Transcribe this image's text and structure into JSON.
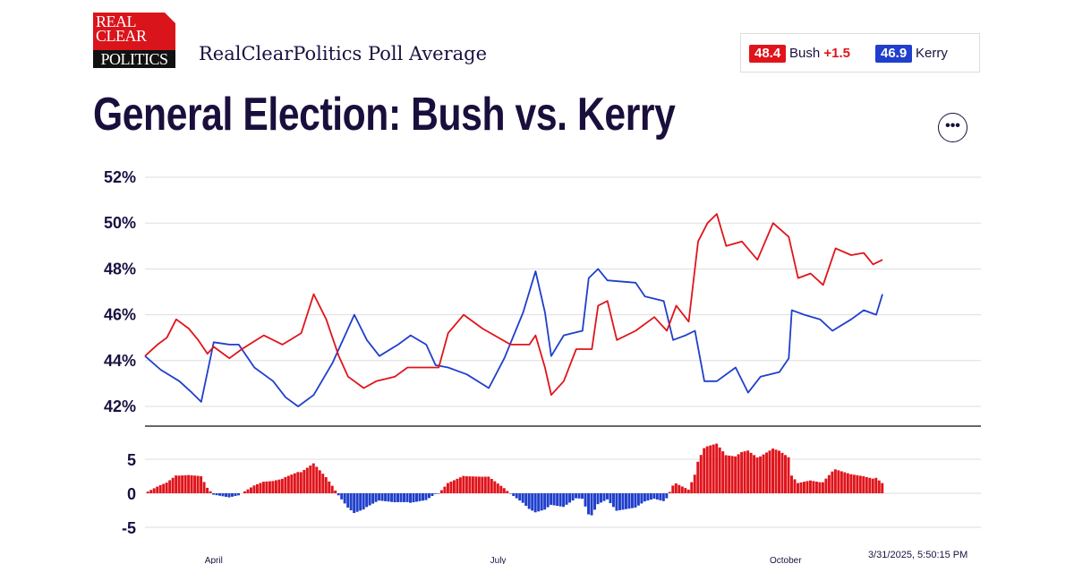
{
  "logo": {
    "lines": [
      "REAL",
      "CLEAR",
      "POLITICS"
    ]
  },
  "header": {
    "subtitle": "RealClearPolitics Poll Average",
    "title": "General Election: Bush vs. Kerry",
    "more_icon": "ellipsis-icon"
  },
  "legend": {
    "bush": {
      "value": "48.4",
      "name": "Bush",
      "lead": "+1.5",
      "color": "#e0141b"
    },
    "kerry": {
      "value": "46.9",
      "name": "Kerry",
      "color": "#1f3fcc"
    }
  },
  "timestamp": "3/31/2025, 5:50:15 PM",
  "chart_data": [
    {
      "type": "line",
      "yticks": [
        "52%",
        "50%",
        "48%",
        "46%",
        "44%",
        "42%"
      ],
      "ylim": [
        42,
        52
      ],
      "xlim": [
        "2004-03-10",
        "2004-11-01"
      ],
      "xticks": [
        {
          "date": "2004-04-01",
          "label": "April"
        },
        {
          "date": "2004-07-01",
          "label": "July"
        },
        {
          "date": "2004-10-01",
          "label": "October"
        }
      ],
      "grid": true,
      "series": [
        {
          "name": "Bush",
          "color": "#e0141b",
          "points": [
            [
              "2004-03-10",
              44.2
            ],
            [
              "2004-03-14",
              44.7
            ],
            [
              "2004-03-17",
              45.0
            ],
            [
              "2004-03-20",
              45.8
            ],
            [
              "2004-03-24",
              45.4
            ],
            [
              "2004-03-27",
              44.9
            ],
            [
              "2004-03-30",
              44.3
            ],
            [
              "2004-04-01",
              44.6
            ],
            [
              "2004-04-06",
              44.1
            ],
            [
              "2004-04-10",
              44.5
            ],
            [
              "2004-04-17",
              45.1
            ],
            [
              "2004-04-23",
              44.7
            ],
            [
              "2004-04-29",
              45.2
            ],
            [
              "2004-05-03",
              46.9
            ],
            [
              "2004-05-07",
              45.8
            ],
            [
              "2004-05-11",
              44.2
            ],
            [
              "2004-05-14",
              43.3
            ],
            [
              "2004-05-19",
              42.8
            ],
            [
              "2004-05-23",
              43.1
            ],
            [
              "2004-05-29",
              43.3
            ],
            [
              "2004-06-02",
              43.7
            ],
            [
              "2004-06-06",
              43.7
            ],
            [
              "2004-06-12",
              43.7
            ],
            [
              "2004-06-15",
              45.2
            ],
            [
              "2004-06-20",
              46.0
            ],
            [
              "2004-06-26",
              45.4
            ],
            [
              "2004-07-05",
              44.7
            ],
            [
              "2004-07-11",
              44.7
            ],
            [
              "2004-07-13",
              45.1
            ],
            [
              "2004-07-16",
              43.7
            ],
            [
              "2004-07-18",
              42.5
            ],
            [
              "2004-07-22",
              43.1
            ],
            [
              "2004-07-26",
              44.5
            ],
            [
              "2004-07-31",
              44.5
            ],
            [
              "2004-08-02",
              46.4
            ],
            [
              "2004-08-05",
              46.6
            ],
            [
              "2004-08-08",
              44.9
            ],
            [
              "2004-08-14",
              45.3
            ],
            [
              "2004-08-20",
              45.9
            ],
            [
              "2004-08-24",
              45.3
            ],
            [
              "2004-08-27",
              46.4
            ],
            [
              "2004-08-31",
              45.7
            ],
            [
              "2004-09-03",
              49.2
            ],
            [
              "2004-09-06",
              50.0
            ],
            [
              "2004-09-09",
              50.4
            ],
            [
              "2004-09-12",
              49.0
            ],
            [
              "2004-09-17",
              49.2
            ],
            [
              "2004-09-22",
              48.4
            ],
            [
              "2004-09-27",
              50.0
            ],
            [
              "2004-10-02",
              49.4
            ],
            [
              "2004-10-05",
              47.6
            ],
            [
              "2004-10-09",
              47.8
            ],
            [
              "2004-10-13",
              47.3
            ],
            [
              "2004-10-17",
              48.9
            ],
            [
              "2004-10-22",
              48.6
            ],
            [
              "2004-10-26",
              48.7
            ],
            [
              "2004-10-29",
              48.2
            ],
            [
              "2004-11-01",
              48.4
            ]
          ]
        },
        {
          "name": "Kerry",
          "color": "#1f3fcc",
          "points": [
            [
              "2004-03-10",
              44.2
            ],
            [
              "2004-03-15",
              43.6
            ],
            [
              "2004-03-21",
              43.1
            ],
            [
              "2004-03-25",
              42.6
            ],
            [
              "2004-03-28",
              42.2
            ],
            [
              "2004-04-01",
              44.8
            ],
            [
              "2004-04-06",
              44.7
            ],
            [
              "2004-04-09",
              44.7
            ],
            [
              "2004-04-14",
              43.7
            ],
            [
              "2004-04-20",
              43.1
            ],
            [
              "2004-04-24",
              42.4
            ],
            [
              "2004-04-28",
              42.0
            ],
            [
              "2004-05-03",
              42.5
            ],
            [
              "2004-05-09",
              43.9
            ],
            [
              "2004-05-13",
              45.1
            ],
            [
              "2004-05-16",
              46.0
            ],
            [
              "2004-05-20",
              44.9
            ],
            [
              "2004-05-24",
              44.2
            ],
            [
              "2004-05-30",
              44.7
            ],
            [
              "2004-06-03",
              45.1
            ],
            [
              "2004-06-08",
              44.7
            ],
            [
              "2004-06-11",
              43.8
            ],
            [
              "2004-06-15",
              43.7
            ],
            [
              "2004-06-21",
              43.4
            ],
            [
              "2004-06-28",
              42.8
            ],
            [
              "2004-07-03",
              44.1
            ],
            [
              "2004-07-09",
              46.1
            ],
            [
              "2004-07-13",
              47.9
            ],
            [
              "2004-07-16",
              46.1
            ],
            [
              "2004-07-18",
              44.2
            ],
            [
              "2004-07-22",
              45.1
            ],
            [
              "2004-07-28",
              45.3
            ],
            [
              "2004-07-30",
              47.6
            ],
            [
              "2004-08-02",
              48.0
            ],
            [
              "2004-08-05",
              47.5
            ],
            [
              "2004-08-14",
              47.4
            ],
            [
              "2004-08-17",
              46.8
            ],
            [
              "2004-08-23",
              46.6
            ],
            [
              "2004-08-26",
              44.9
            ],
            [
              "2004-08-30",
              45.1
            ],
            [
              "2004-09-02",
              45.3
            ],
            [
              "2004-09-05",
              43.1
            ],
            [
              "2004-09-09",
              43.1
            ],
            [
              "2004-09-15",
              43.7
            ],
            [
              "2004-09-19",
              42.6
            ],
            [
              "2004-09-23",
              43.3
            ],
            [
              "2004-09-29",
              43.5
            ],
            [
              "2004-10-02",
              44.1
            ],
            [
              "2004-10-03",
              46.2
            ],
            [
              "2004-10-07",
              46.0
            ],
            [
              "2004-10-12",
              45.8
            ],
            [
              "2004-10-16",
              45.3
            ],
            [
              "2004-10-22",
              45.8
            ],
            [
              "2004-10-26",
              46.2
            ],
            [
              "2004-10-30",
              46.0
            ],
            [
              "2004-11-01",
              46.9
            ]
          ]
        }
      ]
    },
    {
      "type": "bar",
      "description_of_values": "Bush minus Kerry spread",
      "yticks": [
        "5",
        "0",
        "-5"
      ],
      "ylim": [
        -7,
        8
      ],
      "positive_color": "#e0141b",
      "negative_color": "#1f3fcc"
    }
  ]
}
